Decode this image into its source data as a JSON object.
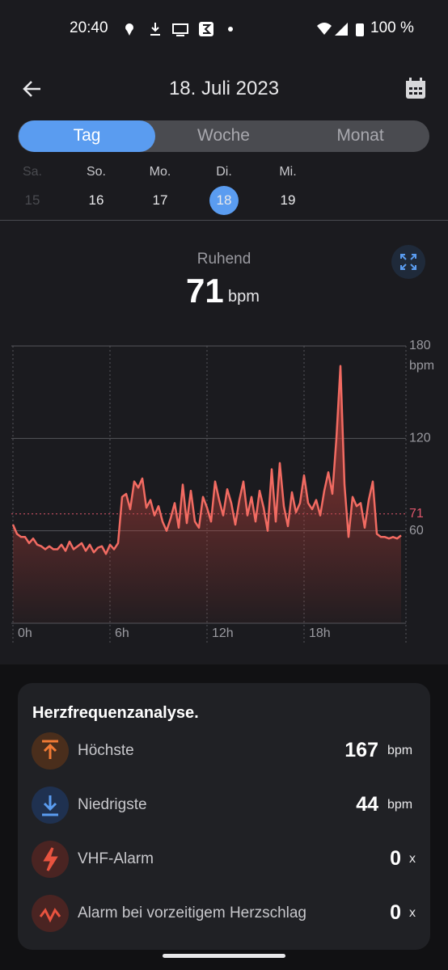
{
  "status_bar": {
    "time": "20:40",
    "battery": "100 %"
  },
  "header": {
    "title": "18. Juli 2023"
  },
  "tabs": [
    "Tag",
    "Woche",
    "Monat"
  ],
  "days": [
    {
      "weekday": "Sa.",
      "date": "15"
    },
    {
      "weekday": "So.",
      "date": "16"
    },
    {
      "weekday": "Mo.",
      "date": "17"
    },
    {
      "weekday": "Di.",
      "date": "18"
    },
    {
      "weekday": "Mi.",
      "date": "19"
    }
  ],
  "summary": {
    "label": "Ruhend",
    "value": "71",
    "unit": "bpm"
  },
  "chart_data": {
    "type": "line",
    "y_unit": "bpm",
    "x": [
      0,
      0.25,
      0.5,
      0.75,
      1,
      1.25,
      1.5,
      1.75,
      2,
      2.25,
      2.5,
      2.75,
      3,
      3.25,
      3.5,
      3.75,
      4,
      4.25,
      4.5,
      4.75,
      5,
      5.25,
      5.5,
      5.75,
      6,
      6.25,
      6.5,
      6.75,
      7,
      7.25,
      7.5,
      7.75,
      8,
      8.25,
      8.5,
      8.75,
      9,
      9.25,
      9.5,
      9.75,
      10,
      10.25,
      10.5,
      10.75,
      11,
      11.25,
      11.5,
      11.75,
      12,
      12.25,
      12.5,
      12.75,
      13,
      13.25,
      13.5,
      13.75,
      14,
      14.25,
      14.5,
      14.75,
      15,
      15.25,
      15.5,
      15.75,
      16,
      16.25,
      16.5,
      16.75,
      17,
      17.25,
      17.5,
      17.75,
      18,
      18.25,
      18.5,
      18.75,
      19,
      19.25,
      19.5,
      19.75,
      20,
      20.25,
      20.5,
      20.75,
      21,
      21.25,
      21.5,
      21.75,
      22,
      22.25,
      22.5,
      22.75,
      23,
      23.25,
      23.5,
      23.75,
      24
    ],
    "series": [
      {
        "color": "#f26b62",
        "values": [
          64,
          58,
          56,
          56,
          52,
          55,
          51,
          50,
          48,
          50,
          48,
          48,
          51,
          47,
          53,
          48,
          50,
          52,
          47,
          51,
          46,
          49,
          50,
          45,
          51,
          48,
          52,
          82,
          84,
          74,
          92,
          88,
          94,
          75,
          80,
          70,
          76,
          66,
          60,
          68,
          78,
          62,
          90,
          65,
          86,
          66,
          62,
          82,
          75,
          66,
          92,
          80,
          70,
          87,
          78,
          64,
          80,
          92,
          70,
          82,
          66,
          86,
          75,
          60,
          100,
          66,
          104,
          76,
          63,
          85,
          72,
          78,
          96,
          78,
          74,
          80,
          70,
          86,
          98,
          84,
          120,
          167,
          90,
          56,
          82,
          76,
          78,
          62,
          80,
          92,
          58,
          56,
          56,
          55,
          56,
          55,
          57
        ]
      }
    ],
    "xlim": [
      0,
      24
    ],
    "ylim": [
      0,
      180
    ],
    "xticks": [
      {
        "value": 0,
        "label": "0h"
      },
      {
        "value": 6,
        "label": "6h"
      },
      {
        "value": 12,
        "label": "12h"
      },
      {
        "value": 18,
        "label": "18h"
      }
    ],
    "yticks": [
      60,
      120,
      180
    ],
    "reference_line": 71,
    "reference_color": "#e0566b",
    "grid": true
  },
  "analysis": {
    "title": "Herzfrequenzanalyse.",
    "rows": [
      {
        "label": "Höchste",
        "value": "167",
        "unit": "bpm"
      },
      {
        "label": "Niedrigste",
        "value": "44",
        "unit": "bpm"
      },
      {
        "label": "VHF-Alarm",
        "value": "0",
        "unit": "x"
      },
      {
        "label": "Alarm bei vorzeitigem Herzschlag",
        "value": "0",
        "unit": "x"
      }
    ]
  }
}
